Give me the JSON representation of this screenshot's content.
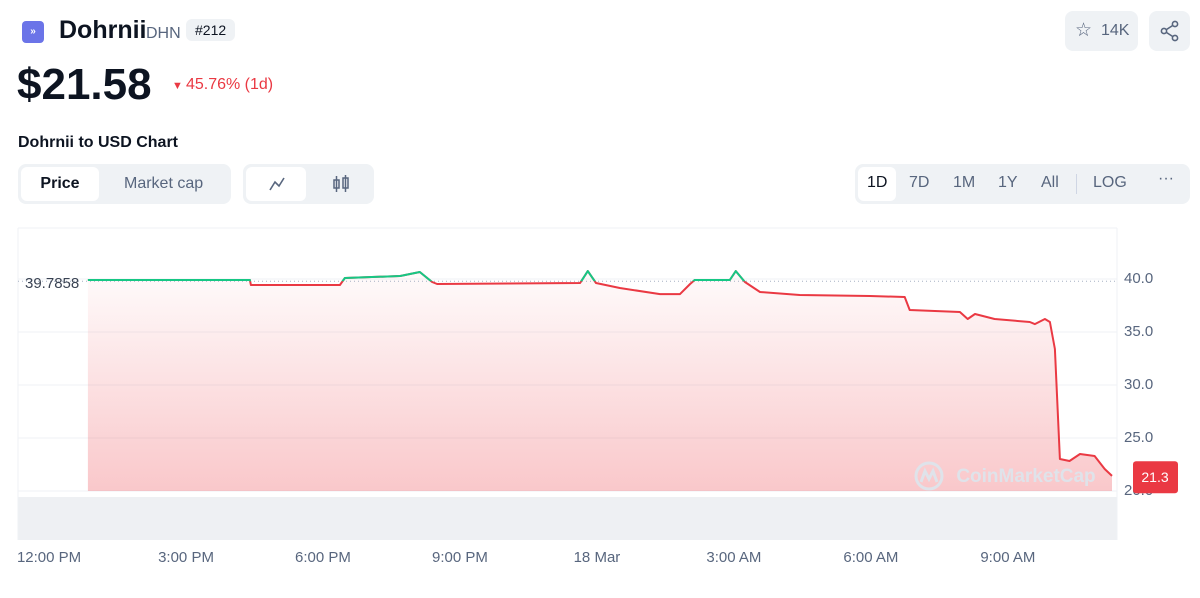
{
  "header": {
    "name": "Dohrnii",
    "symbol": "DHN",
    "rank": "#212",
    "watchlist_count": "14K",
    "price": "$21.58",
    "change": "45.76% (1d)"
  },
  "chart_heading": "Dohrnii to USD Chart",
  "view_tabs": [
    "Price",
    "Market cap"
  ],
  "ranges": [
    "1D",
    "7D",
    "1M",
    "1Y",
    "All",
    "LOG"
  ],
  "watermark": "CoinMarketCap",
  "chart_data": {
    "type": "line",
    "x": [
      0.85,
      4.4,
      4.42,
      6.37,
      6.48,
      7.69,
      8.12,
      8.39,
      8.5,
      11.63,
      11.8,
      11.98,
      12.5,
      13.38,
      13.82,
      14.04,
      14.14,
      14.91,
      15.04,
      15.24,
      15.57,
      16.44,
      17.98,
      18.74,
      18.85,
      19.95,
      20.12,
      20.28,
      20.71,
      21.48,
      21.59,
      21.81,
      21.92,
      22.03,
      22.14,
      22.35,
      22.58,
      22.9,
      23.12,
      23.28
    ],
    "values": [
      39.91,
      39.91,
      39.43,
      39.43,
      40.09,
      40.28,
      40.66,
      39.72,
      39.53,
      39.62,
      40.75,
      39.62,
      39.15,
      38.58,
      38.58,
      39.53,
      39.91,
      39.91,
      40.75,
      39.72,
      38.77,
      38.49,
      38.4,
      38.3,
      37.08,
      36.89,
      36.23,
      36.7,
      36.23,
      35.94,
      35.75,
      36.23,
      35.94,
      33.4,
      23.02,
      22.83,
      23.49,
      23.3,
      22.08,
      21.42
    ],
    "colors": {
      "above": "#16c784",
      "below": "#ea3943"
    },
    "reference": 39.7858,
    "current": 21.3,
    "xlim": [
      -0.68,
      23.39
    ],
    "xticks": [
      {
        "value": 0,
        "label": "12:00 PM"
      },
      {
        "value": 3,
        "label": "3:00 PM"
      },
      {
        "value": 6,
        "label": "6:00 PM"
      },
      {
        "value": 9,
        "label": "9:00 PM"
      },
      {
        "value": 12,
        "label": "18 Mar"
      },
      {
        "value": 15,
        "label": "3:00 AM"
      },
      {
        "value": 18,
        "label": "6:00 AM"
      },
      {
        "value": 21,
        "label": "9:00 AM"
      }
    ],
    "ylim": [
      20,
      45
    ],
    "yticks": [
      {
        "value": 20,
        "label": "20.0"
      },
      {
        "value": 25,
        "label": "25.0"
      },
      {
        "value": 30,
        "label": "30.0"
      },
      {
        "value": 35,
        "label": "35.0"
      },
      {
        "value": 40,
        "label": "40.0"
      }
    ],
    "grid": true
  }
}
